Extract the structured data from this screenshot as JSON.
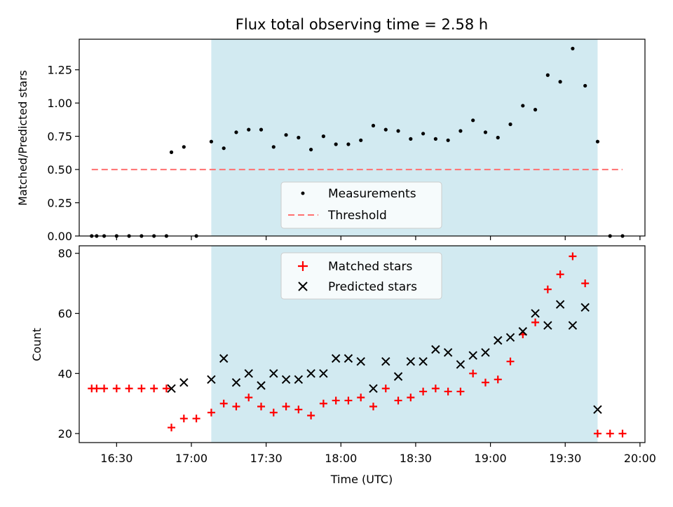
{
  "title": "Flux total observing time = 2.58 h",
  "colors": {
    "shade": "#add8e6",
    "measurement": "#000000",
    "threshold": "#ff7070",
    "matched": "#ff0000",
    "predicted": "#000000"
  },
  "chart_data": [
    {
      "type": "scatter",
      "ylabel": "Matched/Predicted stars",
      "xlim": [
        "16:15",
        "20:02"
      ],
      "ylim": [
        0,
        1.48
      ],
      "yticks": [
        "0.00",
        "0.25",
        "0.50",
        "0.75",
        "1.00",
        "1.25"
      ],
      "yticks_values": [
        0,
        0.25,
        0.5,
        0.75,
        1.0,
        1.25
      ],
      "shaded_region": [
        "17:08",
        "19:43"
      ],
      "legend_position": "lower center",
      "series": [
        {
          "name": "Measurements",
          "x": [
            "16:20",
            "16:22",
            "16:25",
            "16:30",
            "16:35",
            "16:40",
            "16:45",
            "16:50",
            "16:52",
            "16:57",
            "17:02",
            "17:08",
            "17:13",
            "17:18",
            "17:23",
            "17:28",
            "17:33",
            "17:38",
            "17:43",
            "17:48",
            "17:53",
            "17:58",
            "18:03",
            "18:08",
            "18:13",
            "18:18",
            "18:23",
            "18:28",
            "18:33",
            "18:38",
            "18:43",
            "18:48",
            "18:53",
            "18:58",
            "19:03",
            "19:08",
            "19:13",
            "19:18",
            "19:23",
            "19:28",
            "19:33",
            "19:38",
            "19:43",
            "19:48",
            "19:53"
          ],
          "y": [
            0,
            0,
            0,
            0,
            0,
            0,
            0,
            0,
            0.63,
            0.67,
            0,
            0.71,
            0.66,
            0.78,
            0.8,
            0.8,
            0.67,
            0.76,
            0.74,
            0.65,
            0.75,
            0.69,
            0.69,
            0.72,
            0.83,
            0.8,
            0.79,
            0.73,
            0.77,
            0.73,
            0.72,
            0.79,
            0.87,
            0.78,
            0.74,
            0.84,
            0.98,
            0.95,
            1.21,
            1.16,
            1.41,
            1.13,
            0.71,
            0,
            0
          ]
        },
        {
          "name": "Threshold",
          "style": "dashed",
          "x": [
            "16:20",
            "19:53"
          ],
          "y": [
            0.5,
            0.5
          ]
        }
      ]
    },
    {
      "type": "scatter",
      "ylabel": "Count",
      "xlabel": "Time (UTC)",
      "xlim": [
        "16:15",
        "20:02"
      ],
      "ylim": [
        17,
        82.5
      ],
      "yticks": [
        "20",
        "40",
        "60",
        "80"
      ],
      "yticks_values": [
        20,
        40,
        60,
        80
      ],
      "xticks": [
        "16:30",
        "17:00",
        "17:30",
        "18:00",
        "18:30",
        "19:00",
        "19:30",
        "20:00"
      ],
      "shaded_region": [
        "17:08",
        "19:43"
      ],
      "legend_position": "upper center",
      "series": [
        {
          "name": "Matched stars",
          "marker": "+",
          "x": [
            "16:20",
            "16:22",
            "16:25",
            "16:30",
            "16:35",
            "16:40",
            "16:45",
            "16:50",
            "16:52",
            "16:57",
            "17:02",
            "17:08",
            "17:13",
            "17:18",
            "17:23",
            "17:28",
            "17:33",
            "17:38",
            "17:43",
            "17:48",
            "17:53",
            "17:58",
            "18:03",
            "18:08",
            "18:13",
            "18:18",
            "18:23",
            "18:28",
            "18:33",
            "18:38",
            "18:43",
            "18:48",
            "18:53",
            "18:58",
            "19:03",
            "19:08",
            "19:13",
            "19:18",
            "19:23",
            "19:28",
            "19:33",
            "19:38",
            "19:43",
            "19:48",
            "19:53"
          ],
          "y": [
            35,
            35,
            35,
            35,
            35,
            35,
            35,
            35,
            22,
            25,
            25,
            27,
            30,
            29,
            32,
            29,
            27,
            29,
            28,
            26,
            30,
            31,
            31,
            32,
            29,
            35,
            31,
            32,
            34,
            35,
            34,
            34,
            40,
            37,
            38,
            44,
            53,
            57,
            68,
            73,
            79,
            70,
            20,
            20,
            20
          ]
        },
        {
          "name": "Predicted stars",
          "marker": "x",
          "x": [
            "16:52",
            "16:57",
            "17:08",
            "17:13",
            "17:18",
            "17:23",
            "17:28",
            "17:33",
            "17:38",
            "17:43",
            "17:48",
            "17:53",
            "17:58",
            "18:03",
            "18:08",
            "18:13",
            "18:18",
            "18:23",
            "18:28",
            "18:33",
            "18:38",
            "18:43",
            "18:48",
            "18:53",
            "18:58",
            "19:03",
            "19:08",
            "19:13",
            "19:18",
            "19:23",
            "19:28",
            "19:33",
            "19:38",
            "19:43"
          ],
          "y": [
            35,
            37,
            38,
            45,
            37,
            40,
            36,
            40,
            38,
            38,
            40,
            40,
            45,
            45,
            44,
            35,
            44,
            39,
            44,
            44,
            48,
            47,
            43,
            46,
            47,
            51,
            52,
            54,
            60,
            56,
            63,
            56,
            62,
            28
          ]
        }
      ]
    }
  ]
}
